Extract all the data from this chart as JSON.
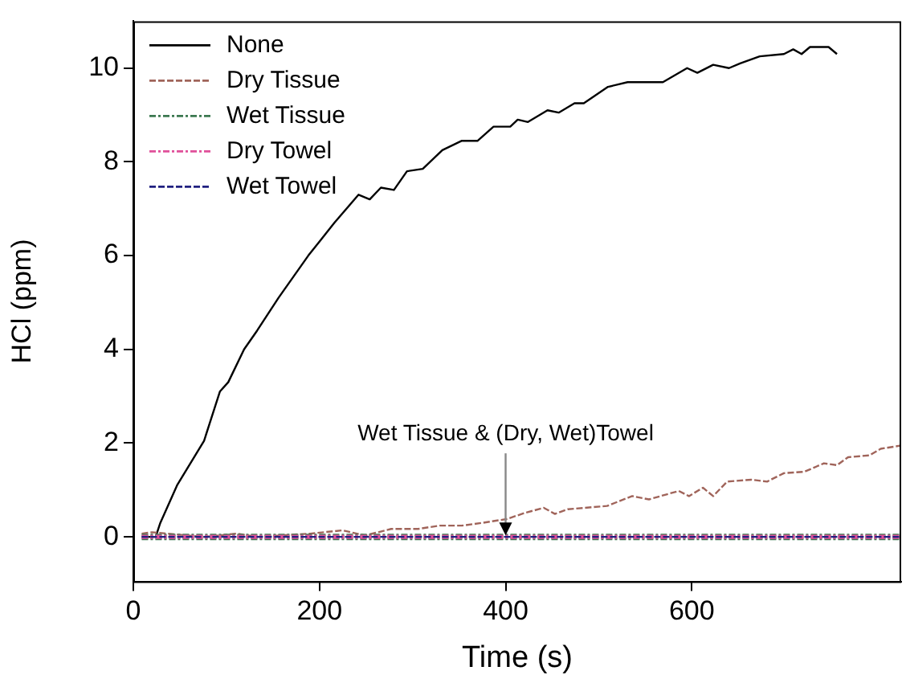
{
  "chart_data": {
    "type": "line",
    "xlabel": "Time (s)",
    "ylabel": "HCl (ppm)",
    "xlim": [
      0,
      825
    ],
    "xticks": [
      0,
      200,
      400,
      600
    ],
    "ylim": [
      -0.95,
      11
    ],
    "yticks": [
      0,
      2,
      4,
      6,
      8,
      10
    ],
    "grid": false,
    "legend": "top left",
    "marker": "none",
    "annotations": [
      {
        "text": "Wet Tissue & (Dry, Wet)Towel",
        "x": 400,
        "y": 0
      }
    ],
    "series": [
      {
        "name": "None",
        "color": "#000000",
        "line_style": "solid",
        "x": [
          9,
          24,
          29,
          47,
          76,
          93,
          102,
          119,
          133,
          156,
          188,
          202,
          216,
          242,
          254,
          266,
          280,
          294,
          311,
          332,
          353,
          370,
          387,
          405,
          413,
          424,
          445,
          457,
          474,
          484,
          510,
          531,
          560,
          569,
          595,
          606,
          623,
          640,
          652,
          673,
          699,
          709,
          718,
          727,
          747,
          756
        ],
        "values": [
          0,
          0,
          0.3,
          1.1,
          2.05,
          3.1,
          3.3,
          4.0,
          4.4,
          5.1,
          6.0,
          6.35,
          6.7,
          7.3,
          7.2,
          7.45,
          7.4,
          7.8,
          7.85,
          8.25,
          8.45,
          8.45,
          8.75,
          8.75,
          8.9,
          8.85,
          9.1,
          9.05,
          9.25,
          9.25,
          9.6,
          9.7,
          9.7,
          9.7,
          10.0,
          9.9,
          10.07,
          10.0,
          10.1,
          10.25,
          10.3,
          10.4,
          10.3,
          10.45,
          10.45,
          10.3
        ]
      },
      {
        "name": "Dry Tissue",
        "color": "#a0645a",
        "line_style": "dashed",
        "x": [
          9,
          20,
          76,
          111,
          133,
          190,
          225,
          249,
          277,
          306,
          329,
          353,
          375,
          401,
          422,
          441,
          453,
          467,
          509,
          536,
          554,
          586,
          597,
          612,
          623,
          638,
          664,
          681,
          699,
          721,
          742,
          756,
          768,
          791,
          803,
          825
        ],
        "values": [
          0.07,
          0.1,
          0,
          0.07,
          0,
          0.07,
          0.14,
          0.03,
          0.17,
          0.17,
          0.24,
          0.24,
          0.3,
          0.38,
          0.52,
          0.62,
          0.49,
          0.59,
          0.66,
          0.87,
          0.8,
          0.98,
          0.87,
          1.05,
          0.87,
          1.18,
          1.22,
          1.18,
          1.36,
          1.39,
          1.57,
          1.53,
          1.7,
          1.74,
          1.88,
          1.95
        ]
      },
      {
        "name": "Wet Tissue",
        "color": "#3c7850",
        "line_style": "dashdot",
        "x": [
          9,
          825
        ],
        "values": [
          0,
          0
        ]
      },
      {
        "name": "Dry Towel",
        "color": "#e0509a",
        "line_style": "dashdot",
        "x": [
          9,
          825
        ],
        "values": [
          0,
          0
        ]
      },
      {
        "name": "Wet Towel",
        "color": "#202080",
        "line_style": "dashed",
        "x": [
          9,
          825
        ],
        "values": [
          0,
          0
        ]
      }
    ]
  }
}
